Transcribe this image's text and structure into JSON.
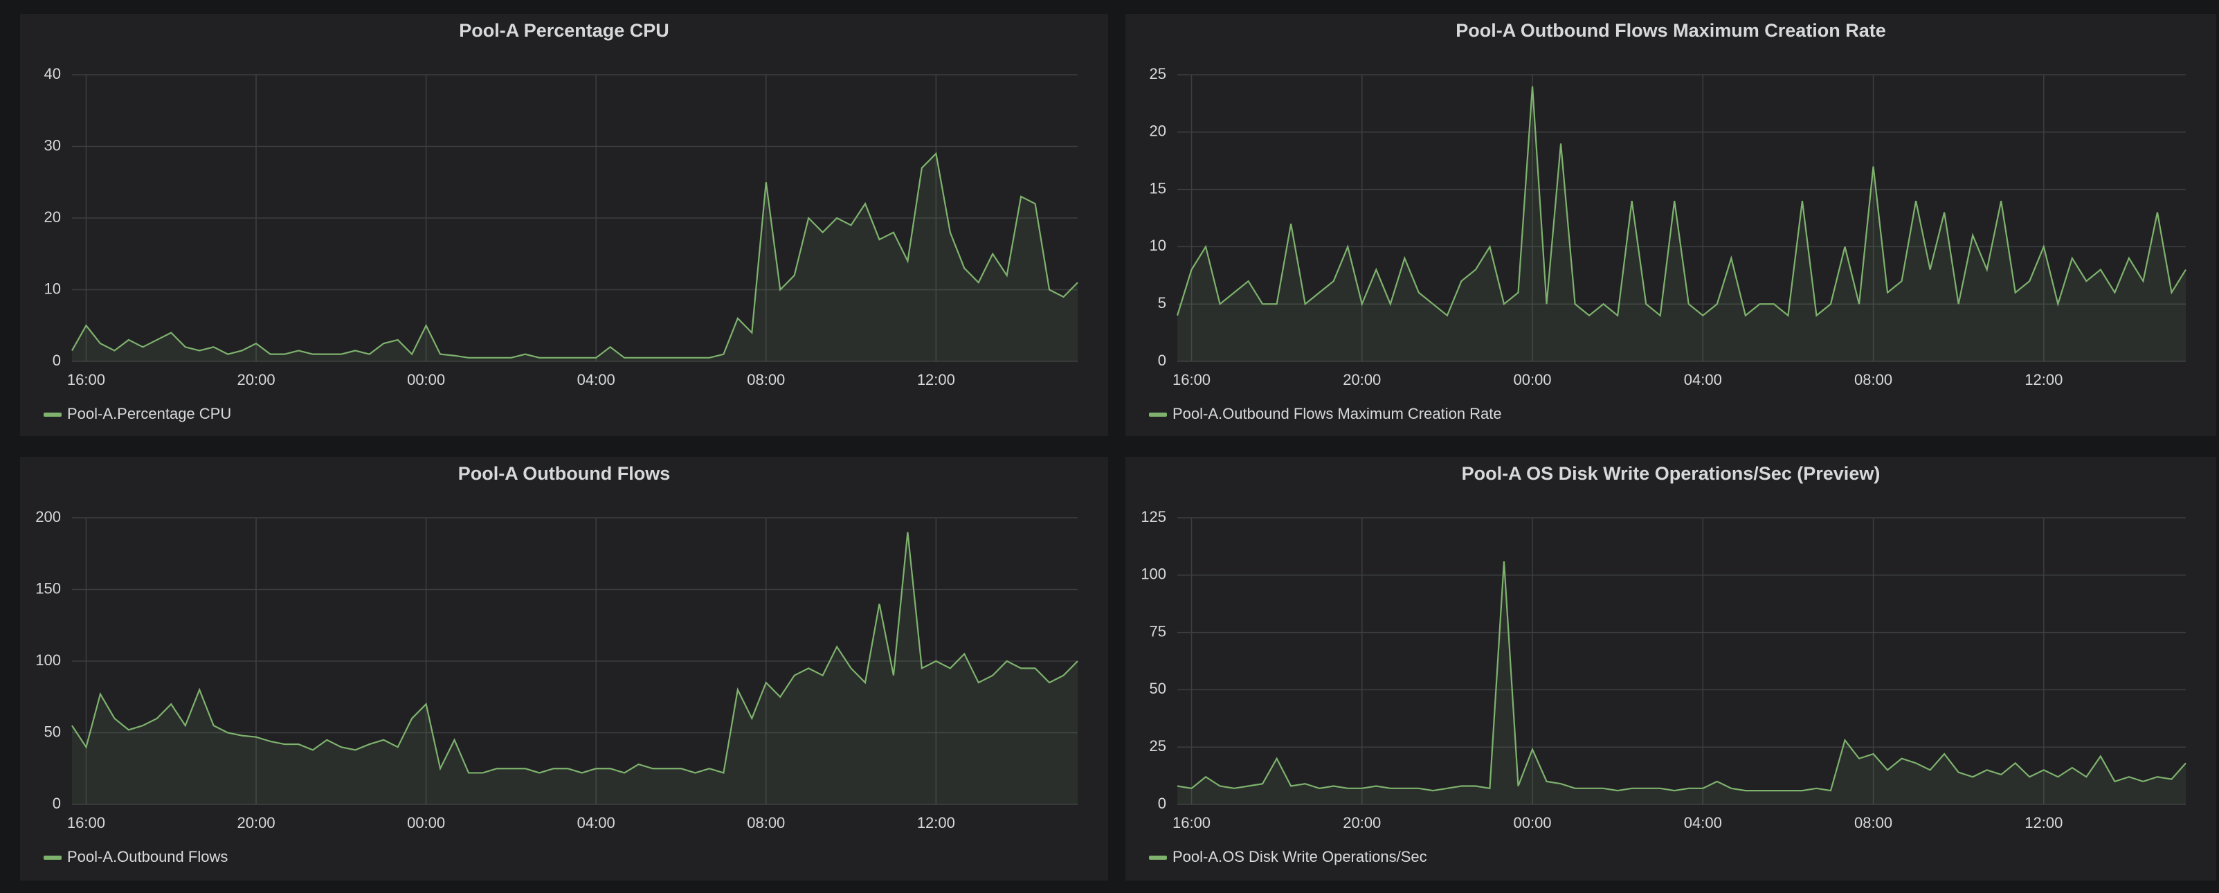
{
  "chart_data": [
    {
      "type": "line",
      "title": "Pool-A Percentage CPU",
      "x": [
        "15:40",
        "16:00",
        "16:20",
        "16:40",
        "17:00",
        "17:20",
        "17:40",
        "18:00",
        "18:20",
        "18:40",
        "19:00",
        "19:20",
        "19:40",
        "20:00",
        "20:20",
        "20:40",
        "21:00",
        "21:20",
        "21:40",
        "22:00",
        "22:20",
        "22:40",
        "23:00",
        "23:20",
        "23:40",
        "00:00",
        "00:20",
        "00:40",
        "01:00",
        "01:20",
        "01:40",
        "02:00",
        "02:20",
        "02:40",
        "03:00",
        "03:20",
        "03:40",
        "04:00",
        "04:20",
        "04:40",
        "05:00",
        "05:20",
        "05:40",
        "06:00",
        "06:20",
        "06:40",
        "07:00",
        "07:20",
        "07:40",
        "08:00",
        "08:20",
        "08:40",
        "09:00",
        "09:20",
        "09:40",
        "10:00",
        "10:20",
        "10:40",
        "11:00",
        "11:20",
        "11:40",
        "12:00",
        "12:20",
        "12:40",
        "13:00",
        "13:20",
        "13:40",
        "14:00",
        "14:20",
        "14:40",
        "15:00",
        "15:20"
      ],
      "series": [
        {
          "name": "Pool-A.Percentage CPU",
          "color": "#7eb26d",
          "values": [
            1.5,
            5,
            2.5,
            1.5,
            3,
            2,
            3,
            4,
            2,
            1.5,
            2,
            1,
            1.5,
            2.5,
            1,
            1,
            1.5,
            1,
            1,
            1,
            1.5,
            1,
            2.5,
            3,
            1,
            5,
            1,
            0.8,
            0.5,
            0.5,
            0.5,
            0.5,
            1,
            0.5,
            0.5,
            0.5,
            0.5,
            0.5,
            2,
            0.5,
            0.5,
            0.5,
            0.5,
            0.5,
            0.5,
            0.5,
            1,
            6,
            4,
            25,
            10,
            12,
            20,
            18,
            20,
            19,
            22,
            17,
            18,
            14,
            27,
            29,
            18,
            13,
            11,
            15,
            12,
            23,
            22,
            10,
            9,
            11
          ]
        }
      ],
      "ylim": [
        0,
        40
      ],
      "yticks": [
        0,
        10,
        20,
        30,
        40
      ],
      "xticks": [
        "16:00",
        "20:00",
        "00:00",
        "04:00",
        "08:00",
        "12:00"
      ],
      "grid": true
    },
    {
      "type": "line",
      "title": "Pool-A Outbound Flows Maximum Creation Rate",
      "x": [
        "15:40",
        "16:00",
        "16:20",
        "16:40",
        "17:00",
        "17:20",
        "17:40",
        "18:00",
        "18:20",
        "18:40",
        "19:00",
        "19:20",
        "19:40",
        "20:00",
        "20:20",
        "20:40",
        "21:00",
        "21:20",
        "21:40",
        "22:00",
        "22:20",
        "22:40",
        "23:00",
        "23:20",
        "23:40",
        "00:00",
        "00:20",
        "00:40",
        "01:00",
        "01:20",
        "01:40",
        "02:00",
        "02:20",
        "02:40",
        "03:00",
        "03:20",
        "03:40",
        "04:00",
        "04:20",
        "04:40",
        "05:00",
        "05:20",
        "05:40",
        "06:00",
        "06:20",
        "06:40",
        "07:00",
        "07:20",
        "07:40",
        "08:00",
        "08:20",
        "08:40",
        "09:00",
        "09:20",
        "09:40",
        "10:00",
        "10:20",
        "10:40",
        "11:00",
        "11:20",
        "11:40",
        "12:00",
        "12:20",
        "12:40",
        "13:00",
        "13:20",
        "13:40",
        "14:00",
        "14:20",
        "14:40",
        "15:00",
        "15:20"
      ],
      "series": [
        {
          "name": "Pool-A.Outbound Flows Maximum Creation Rate",
          "color": "#7eb26d",
          "values": [
            4,
            8,
            10,
            5,
            6,
            7,
            5,
            5,
            12,
            5,
            6,
            7,
            10,
            5,
            8,
            5,
            9,
            6,
            5,
            4,
            7,
            8,
            10,
            5,
            6,
            24,
            5,
            19,
            5,
            4,
            5,
            4,
            14,
            5,
            4,
            14,
            5,
            4,
            5,
            9,
            4,
            5,
            5,
            4,
            14,
            4,
            5,
            10,
            5,
            17,
            6,
            7,
            14,
            8,
            13,
            5,
            11,
            8,
            14,
            6,
            7,
            10,
            5,
            9,
            7,
            8,
            6,
            9,
            7,
            13,
            6,
            8
          ]
        }
      ],
      "ylim": [
        0,
        25
      ],
      "yticks": [
        0,
        5,
        10,
        15,
        20,
        25
      ],
      "xticks": [
        "16:00",
        "20:00",
        "00:00",
        "04:00",
        "08:00",
        "12:00"
      ],
      "grid": true
    },
    {
      "type": "line",
      "title": "Pool-A Outbound Flows",
      "x": [
        "15:40",
        "16:00",
        "16:20",
        "16:40",
        "17:00",
        "17:20",
        "17:40",
        "18:00",
        "18:20",
        "18:40",
        "19:00",
        "19:20",
        "19:40",
        "20:00",
        "20:20",
        "20:40",
        "21:00",
        "21:20",
        "21:40",
        "22:00",
        "22:20",
        "22:40",
        "23:00",
        "23:20",
        "23:40",
        "00:00",
        "00:20",
        "00:40",
        "01:00",
        "01:20",
        "01:40",
        "02:00",
        "02:20",
        "02:40",
        "03:00",
        "03:20",
        "03:40",
        "04:00",
        "04:20",
        "04:40",
        "05:00",
        "05:20",
        "05:40",
        "06:00",
        "06:20",
        "06:40",
        "07:00",
        "07:20",
        "07:40",
        "08:00",
        "08:20",
        "08:40",
        "09:00",
        "09:20",
        "09:40",
        "10:00",
        "10:20",
        "10:40",
        "11:00",
        "11:20",
        "11:40",
        "12:00",
        "12:20",
        "12:40",
        "13:00",
        "13:20",
        "13:40",
        "14:00",
        "14:20",
        "14:40",
        "15:00",
        "15:20"
      ],
      "series": [
        {
          "name": "Pool-A.Outbound Flows",
          "color": "#7eb26d",
          "values": [
            55,
            40,
            77,
            60,
            52,
            55,
            60,
            70,
            55,
            80,
            55,
            50,
            48,
            47,
            44,
            42,
            42,
            38,
            45,
            40,
            38,
            42,
            45,
            40,
            60,
            70,
            25,
            45,
            22,
            22,
            25,
            25,
            25,
            22,
            25,
            25,
            22,
            25,
            25,
            22,
            28,
            25,
            25,
            25,
            22,
            25,
            22,
            80,
            60,
            85,
            75,
            90,
            95,
            90,
            110,
            95,
            85,
            140,
            90,
            190,
            95,
            100,
            95,
            105,
            85,
            90,
            100,
            95,
            95,
            85,
            90,
            100
          ]
        }
      ],
      "ylim": [
        0,
        200
      ],
      "yticks": [
        0,
        50,
        100,
        150,
        200
      ],
      "xticks": [
        "16:00",
        "20:00",
        "00:00",
        "04:00",
        "08:00",
        "12:00"
      ],
      "grid": true
    },
    {
      "type": "line",
      "title": "Pool-A OS Disk Write Operations/Sec (Preview)",
      "x": [
        "15:40",
        "16:00",
        "16:20",
        "16:40",
        "17:00",
        "17:20",
        "17:40",
        "18:00",
        "18:20",
        "18:40",
        "19:00",
        "19:20",
        "19:40",
        "20:00",
        "20:20",
        "20:40",
        "21:00",
        "21:20",
        "21:40",
        "22:00",
        "22:20",
        "22:40",
        "23:00",
        "23:20",
        "23:40",
        "00:00",
        "00:20",
        "00:40",
        "01:00",
        "01:20",
        "01:40",
        "02:00",
        "02:20",
        "02:40",
        "03:00",
        "03:20",
        "03:40",
        "04:00",
        "04:20",
        "04:40",
        "05:00",
        "05:20",
        "05:40",
        "06:00",
        "06:20",
        "06:40",
        "07:00",
        "07:20",
        "07:40",
        "08:00",
        "08:20",
        "08:40",
        "09:00",
        "09:20",
        "09:40",
        "10:00",
        "10:20",
        "10:40",
        "11:00",
        "11:20",
        "11:40",
        "12:00",
        "12:20",
        "12:40",
        "13:00",
        "13:20",
        "13:40",
        "14:00",
        "14:20",
        "14:40",
        "15:00",
        "15:20"
      ],
      "series": [
        {
          "name": "Pool-A.OS Disk Write Operations/Sec",
          "color": "#7eb26d",
          "values": [
            8,
            7,
            12,
            8,
            7,
            8,
            9,
            20,
            8,
            9,
            7,
            8,
            7,
            7,
            8,
            7,
            7,
            7,
            6,
            7,
            8,
            8,
            7,
            106,
            8,
            24,
            10,
            9,
            7,
            7,
            7,
            6,
            7,
            7,
            7,
            6,
            7,
            7,
            10,
            7,
            6,
            6,
            6,
            6,
            6,
            7,
            6,
            28,
            20,
            22,
            15,
            20,
            18,
            15,
            22,
            14,
            12,
            15,
            13,
            18,
            12,
            15,
            12,
            16,
            12,
            21,
            10,
            12,
            10,
            12,
            11,
            18
          ]
        }
      ],
      "ylim": [
        0,
        125
      ],
      "yticks": [
        0,
        25,
        50,
        75,
        100,
        125
      ],
      "xticks": [
        "16:00",
        "20:00",
        "00:00",
        "04:00",
        "08:00",
        "12:00"
      ],
      "grid": true
    }
  ]
}
